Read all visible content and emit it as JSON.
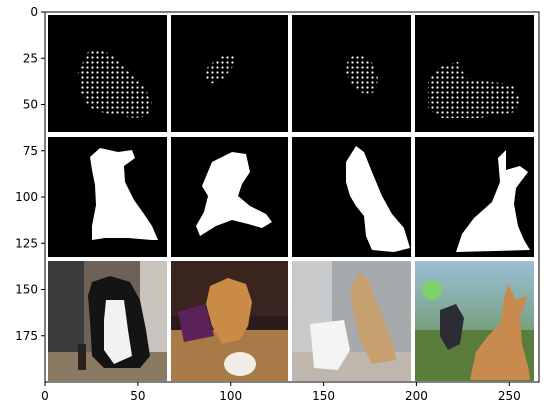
{
  "chart_data": {
    "type": "image",
    "xlim": [
      0,
      266
    ],
    "ylim": [
      200,
      0
    ],
    "x_ticks": [
      0,
      50,
      100,
      150,
      200,
      250
    ],
    "y_ticks": [
      0,
      25,
      50,
      75,
      100,
      125,
      150,
      175
    ],
    "grid": false,
    "title": "",
    "xlabel": "",
    "ylabel": "",
    "panel_grid": {
      "rows": 3,
      "cols": 4
    },
    "rows": [
      {
        "content": "sparse dot masks (white points on black)"
      },
      {
        "content": "solid silhouette masks (white on black)"
      },
      {
        "content": "dog photographs"
      }
    ]
  },
  "colors": {
    "mask_background": "#000000",
    "mask_foreground": "#ffffff",
    "separator": "#ffffff",
    "axes": "#000000"
  }
}
